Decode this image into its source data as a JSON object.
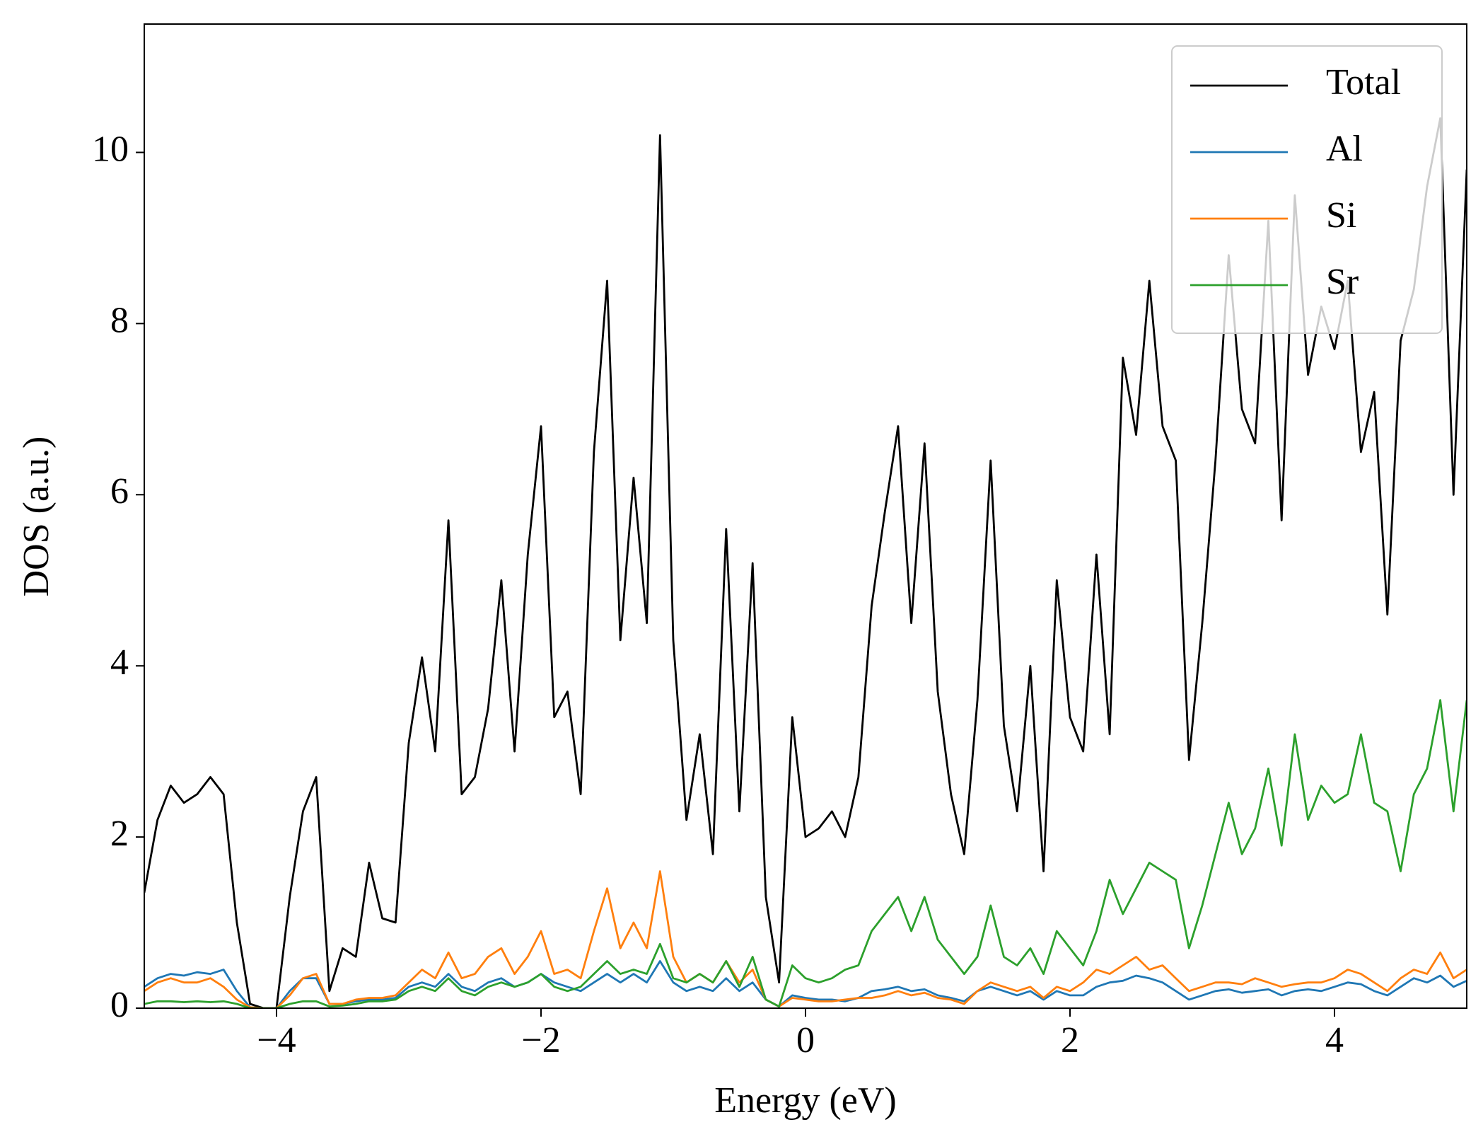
{
  "chart_data": {
    "type": "line",
    "xlabel": "Energy (eV)",
    "ylabel": "DOS (a.u.)",
    "x": [
      -5.0,
      -4.9,
      -4.8,
      -4.7,
      -4.6,
      -4.5,
      -4.4,
      -4.3,
      -4.2,
      -4.1,
      -4.0,
      -3.9,
      -3.8,
      -3.7,
      -3.6,
      -3.5,
      -3.4,
      -3.3,
      -3.2,
      -3.1,
      -3.0,
      -2.9,
      -2.8,
      -2.7,
      -2.6,
      -2.5,
      -2.4,
      -2.3,
      -2.2,
      -2.1,
      -2.0,
      -1.9,
      -1.8,
      -1.7,
      -1.6,
      -1.5,
      -1.4,
      -1.3,
      -1.2,
      -1.1,
      -1.0,
      -0.9,
      -0.8,
      -0.7,
      -0.6,
      -0.5,
      -0.4,
      -0.3,
      -0.2,
      -0.1,
      0.0,
      0.1,
      0.2,
      0.3,
      0.4,
      0.5,
      0.6,
      0.7,
      0.8,
      0.9,
      1.0,
      1.1,
      1.2,
      1.3,
      1.4,
      1.5,
      1.6,
      1.7,
      1.8,
      1.9,
      2.0,
      2.1,
      2.2,
      2.3,
      2.4,
      2.5,
      2.6,
      2.7,
      2.8,
      2.9,
      3.0,
      3.1,
      3.2,
      3.3,
      3.4,
      3.5,
      3.6,
      3.7,
      3.8,
      3.9,
      4.0,
      4.1,
      4.2,
      4.3,
      4.4,
      4.5,
      4.6,
      4.7,
      4.8,
      4.9,
      5.0
    ],
    "series": [
      {
        "name": "Total",
        "color": "#000000",
        "values": [
          1.35,
          2.2,
          2.6,
          2.4,
          2.5,
          2.7,
          2.5,
          1.0,
          0.05,
          0,
          0,
          1.3,
          2.3,
          2.7,
          0.2,
          0.7,
          0.6,
          1.7,
          1.05,
          1.0,
          3.1,
          4.1,
          3.0,
          5.7,
          2.5,
          2.7,
          3.5,
          5.0,
          3.0,
          5.3,
          6.8,
          3.4,
          3.7,
          2.5,
          6.5,
          8.5,
          4.3,
          6.2,
          4.5,
          10.2,
          4.3,
          2.2,
          3.2,
          1.8,
          5.6,
          2.3,
          5.2,
          1.3,
          0.3,
          3.4,
          2.0,
          2.1,
          2.3,
          2.0,
          2.7,
          4.7,
          5.8,
          6.8,
          4.5,
          6.6,
          3.7,
          2.5,
          1.8,
          3.6,
          6.4,
          3.3,
          2.3,
          4.0,
          1.6,
          5.0,
          3.4,
          3.0,
          5.3,
          3.2,
          7.6,
          6.7,
          8.5,
          6.8,
          6.4,
          2.9,
          4.5,
          6.4,
          8.8,
          7.0,
          6.6,
          9.2,
          5.7,
          9.5,
          7.4,
          8.2,
          7.7,
          8.5,
          6.5,
          7.2,
          4.6,
          7.8,
          8.4,
          9.6,
          10.4,
          6.0,
          9.8
        ]
      },
      {
        "name": "Al",
        "color": "#1f77b4",
        "values": [
          0.25,
          0.35,
          0.4,
          0.38,
          0.42,
          0.4,
          0.45,
          0.2,
          0.01,
          0,
          0,
          0.2,
          0.35,
          0.35,
          0.05,
          0.05,
          0.08,
          0.1,
          0.1,
          0.12,
          0.25,
          0.3,
          0.25,
          0.4,
          0.25,
          0.2,
          0.3,
          0.35,
          0.25,
          0.3,
          0.4,
          0.3,
          0.25,
          0.2,
          0.3,
          0.4,
          0.3,
          0.4,
          0.3,
          0.55,
          0.3,
          0.2,
          0.25,
          0.2,
          0.35,
          0.2,
          0.3,
          0.1,
          0.02,
          0.15,
          0.12,
          0.1,
          0.1,
          0.08,
          0.12,
          0.2,
          0.22,
          0.25,
          0.2,
          0.22,
          0.15,
          0.12,
          0.08,
          0.2,
          0.25,
          0.2,
          0.15,
          0.2,
          0.1,
          0.2,
          0.15,
          0.15,
          0.25,
          0.3,
          0.32,
          0.38,
          0.35,
          0.3,
          0.2,
          0.1,
          0.15,
          0.2,
          0.22,
          0.18,
          0.2,
          0.22,
          0.15,
          0.2,
          0.22,
          0.2,
          0.25,
          0.3,
          0.28,
          0.2,
          0.15,
          0.25,
          0.35,
          0.3,
          0.38,
          0.25,
          0.32
        ]
      },
      {
        "name": "Si",
        "color": "#ff7f0e",
        "values": [
          0.2,
          0.3,
          0.35,
          0.3,
          0.3,
          0.35,
          0.25,
          0.1,
          0.01,
          0,
          0,
          0.15,
          0.35,
          0.4,
          0.05,
          0.05,
          0.1,
          0.12,
          0.12,
          0.15,
          0.3,
          0.45,
          0.35,
          0.65,
          0.35,
          0.4,
          0.6,
          0.7,
          0.4,
          0.6,
          0.9,
          0.4,
          0.45,
          0.35,
          0.9,
          1.4,
          0.7,
          1.0,
          0.7,
          1.6,
          0.6,
          0.3,
          0.4,
          0.3,
          0.55,
          0.3,
          0.45,
          0.1,
          0.02,
          0.12,
          0.1,
          0.08,
          0.08,
          0.1,
          0.12,
          0.12,
          0.15,
          0.2,
          0.15,
          0.18,
          0.12,
          0.1,
          0.05,
          0.2,
          0.3,
          0.25,
          0.2,
          0.25,
          0.12,
          0.25,
          0.2,
          0.3,
          0.45,
          0.4,
          0.5,
          0.6,
          0.45,
          0.5,
          0.35,
          0.2,
          0.25,
          0.3,
          0.3,
          0.28,
          0.35,
          0.3,
          0.25,
          0.28,
          0.3,
          0.3,
          0.35,
          0.45,
          0.4,
          0.3,
          0.2,
          0.35,
          0.45,
          0.4,
          0.65,
          0.35,
          0.45
        ]
      },
      {
        "name": "Sr",
        "color": "#2ca02c",
        "values": [
          0.05,
          0.08,
          0.08,
          0.07,
          0.08,
          0.07,
          0.08,
          0.05,
          0,
          0,
          0,
          0.05,
          0.08,
          0.08,
          0.02,
          0.03,
          0.05,
          0.08,
          0.08,
          0.1,
          0.2,
          0.25,
          0.2,
          0.35,
          0.2,
          0.15,
          0.25,
          0.3,
          0.25,
          0.3,
          0.4,
          0.25,
          0.2,
          0.25,
          0.4,
          0.55,
          0.4,
          0.45,
          0.4,
          0.75,
          0.35,
          0.3,
          0.4,
          0.3,
          0.55,
          0.25,
          0.6,
          0.1,
          0.02,
          0.5,
          0.35,
          0.3,
          0.35,
          0.45,
          0.5,
          0.9,
          1.1,
          1.3,
          0.9,
          1.3,
          0.8,
          0.6,
          0.4,
          0.6,
          1.2,
          0.6,
          0.5,
          0.7,
          0.4,
          0.9,
          0.7,
          0.5,
          0.9,
          1.5,
          1.1,
          1.4,
          1.7,
          1.6,
          1.5,
          0.7,
          1.2,
          1.8,
          2.4,
          1.8,
          2.1,
          2.8,
          1.9,
          3.2,
          2.2,
          2.6,
          2.4,
          2.5,
          3.2,
          2.4,
          2.3,
          1.6,
          2.5,
          2.8,
          3.6,
          2.3,
          3.6
        ]
      }
    ],
    "xlim": [
      -5,
      5
    ],
    "xticks": [
      {
        "value": -4,
        "label": "−4"
      },
      {
        "value": -2,
        "label": "−2"
      },
      0,
      2,
      4
    ],
    "ylim": [
      0,
      11.5
    ],
    "yticks": [
      0,
      2,
      4,
      6,
      8,
      10
    ],
    "grid": false,
    "legend": "upper right"
  }
}
